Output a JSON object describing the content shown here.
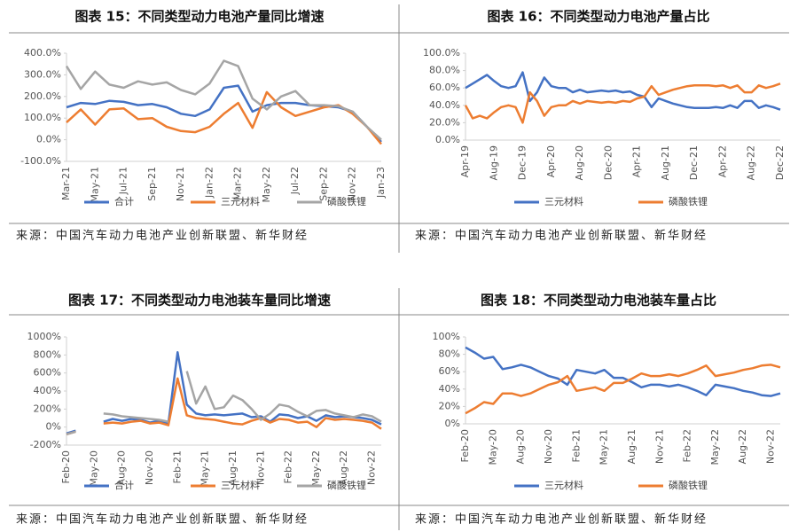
{
  "chart_data": [
    {
      "type": "line",
      "title": "图表 15：不同类型动力电池产量同比增速",
      "source": "来源：中国汽车动力电池产业创新联盟、新华财经",
      "categories": [
        "Mar-21",
        null,
        "May-21",
        null,
        "Jul-21",
        null,
        "Sep-21",
        null,
        "Nov-21",
        null,
        "Jan-22",
        null,
        "Mar-22",
        null,
        "May-22",
        null,
        "Jul-22",
        null,
        "Sep-22",
        null,
        "Nov-22",
        null,
        "Jan-23"
      ],
      "ylim": [
        -100,
        400
      ],
      "yticks": [
        {
          "value": -100,
          "label": "-100.0%"
        },
        {
          "value": 0,
          "label": "0.0%"
        },
        {
          "value": 100,
          "label": "100.0%"
        },
        {
          "value": 200,
          "label": "200.0%"
        },
        {
          "value": 300,
          "label": "300.0%"
        },
        {
          "value": 400,
          "label": "400.0%"
        }
      ],
      "grid": false,
      "legend": "bottom",
      "series": [
        {
          "name": "合计",
          "color": "#4472c4",
          "values": [
            150,
            170,
            165,
            180,
            175,
            160,
            165,
            150,
            120,
            110,
            140,
            240,
            250,
            130,
            160,
            170,
            170,
            160,
            155,
            150,
            130,
            60,
            -10
          ]
        },
        {
          "name": "三元材料",
          "color": "#ed7d31",
          "values": [
            80,
            140,
            70,
            140,
            145,
            95,
            100,
            60,
            40,
            35,
            60,
            120,
            170,
            55,
            220,
            150,
            110,
            130,
            150,
            160,
            120,
            60,
            -20
          ]
        },
        {
          "name": "磷酸铁锂",
          "color": "#a5a5a5",
          "values": [
            340,
            235,
            315,
            255,
            240,
            270,
            255,
            265,
            230,
            210,
            260,
            365,
            340,
            190,
            140,
            200,
            225,
            160,
            160,
            155,
            130,
            60,
            0
          ]
        }
      ]
    },
    {
      "type": "line",
      "title": "图表 16：不同类型动力电池产量占比",
      "source": "来源：中国汽车动力电池产业创新联盟、新华财经",
      "categories": [
        "Apr-19",
        null,
        null,
        null,
        "Aug-19",
        null,
        null,
        null,
        "Dec-19",
        null,
        null,
        null,
        "Apr-20",
        null,
        null,
        null,
        "Aug-20",
        null,
        null,
        null,
        "Dec-20",
        null,
        null,
        null,
        "Apr-21",
        null,
        null,
        null,
        "Aug-21",
        null,
        null,
        null,
        "Dec-21",
        null,
        null,
        null,
        "Apr-22",
        null,
        null,
        null,
        "Aug-22",
        null,
        null,
        null,
        "Dec-22"
      ],
      "ylim": [
        0,
        100
      ],
      "yticks": [
        {
          "value": 0,
          "label": "0.0%"
        },
        {
          "value": 20,
          "label": "20.0%"
        },
        {
          "value": 40,
          "label": "40.0%"
        },
        {
          "value": 60,
          "label": "60.0%"
        },
        {
          "value": 80,
          "label": "80.0%"
        },
        {
          "value": 100,
          "label": "100.0%"
        }
      ],
      "grid": false,
      "legend": "bottom",
      "series": [
        {
          "name": "三元材料",
          "color": "#4472c4",
          "values": [
            60,
            65,
            70,
            75,
            68,
            62,
            60,
            62,
            78,
            45,
            55,
            72,
            62,
            60,
            60,
            55,
            58,
            55,
            56,
            57,
            56,
            57,
            55,
            56,
            52,
            50,
            38,
            48,
            45,
            42,
            40,
            38,
            37,
            37,
            37,
            38,
            37,
            40,
            37,
            45,
            45,
            37,
            40,
            38,
            35
          ]
        },
        {
          "name": "磷酸铁锂",
          "color": "#ed7d31",
          "values": [
            40,
            25,
            28,
            25,
            32,
            38,
            40,
            38,
            20,
            55,
            45,
            28,
            38,
            40,
            40,
            45,
            42,
            45,
            44,
            43,
            44,
            43,
            45,
            44,
            48,
            50,
            62,
            52,
            55,
            58,
            60,
            62,
            63,
            63,
            63,
            62,
            63,
            60,
            63,
            55,
            55,
            63,
            60,
            62,
            65
          ]
        }
      ]
    },
    {
      "type": "line",
      "title": "图表 17：不同类型动力电池装车量同比增速",
      "source": "来源：中国汽车动力电池产业创新联盟、新华财经",
      "categories": [
        "Feb-20",
        null,
        null,
        "May-20",
        null,
        null,
        "Aug-20",
        null,
        null,
        "Nov-20",
        null,
        null,
        "Feb-21",
        null,
        null,
        "May-21",
        null,
        null,
        "Aug-21",
        null,
        null,
        "Nov-21",
        null,
        null,
        "Feb-22",
        null,
        null,
        "May-22",
        null,
        null,
        "Aug-22",
        null,
        null,
        "Nov-22",
        null
      ],
      "ylim": [
        -200,
        1000
      ],
      "yticks": [
        {
          "value": -200,
          "label": "-200%"
        },
        {
          "value": 0,
          "label": "0%"
        },
        {
          "value": 200,
          "label": "200%"
        },
        {
          "value": 400,
          "label": "400%"
        },
        {
          "value": 600,
          "label": "600%"
        },
        {
          "value": 800,
          "label": "800%"
        },
        {
          "value": 1000,
          "label": "1000%"
        }
      ],
      "grid": false,
      "legend": "bottom",
      "series": [
        {
          "name": "合计",
          "color": "#4472c4",
          "values": [
            -70,
            -40,
            null,
            null,
            60,
            90,
            70,
            90,
            80,
            50,
            70,
            40,
            830,
            250,
            150,
            130,
            140,
            130,
            140,
            150,
            110,
            120,
            60,
            140,
            130,
            100,
            120,
            70,
            130,
            110,
            120,
            110,
            100,
            80,
            30
          ]
        },
        {
          "name": "三元材料",
          "color": "#ed7d31",
          "values": [
            -80,
            -50,
            null,
            null,
            40,
            50,
            40,
            60,
            70,
            40,
            50,
            20,
            540,
            130,
            100,
            90,
            80,
            60,
            40,
            30,
            70,
            100,
            50,
            90,
            80,
            50,
            60,
            0,
            100,
            80,
            90,
            80,
            70,
            50,
            -20
          ]
        },
        {
          "name": "磷酸铁锂",
          "color": "#a5a5a5",
          "values": [
            -80,
            -50,
            null,
            null,
            150,
            140,
            120,
            110,
            100,
            90,
            80,
            60,
            null,
            620,
            260,
            450,
            200,
            220,
            350,
            300,
            200,
            80,
            150,
            250,
            230,
            170,
            120,
            180,
            190,
            150,
            130,
            110,
            140,
            120,
            60
          ]
        }
      ]
    },
    {
      "type": "line",
      "title": "图表 18：不同类型动力电池装车量占比",
      "source": "来源：中国汽车动力电池产业创新联盟、新华财经",
      "categories": [
        "Feb-20",
        null,
        null,
        "May-20",
        null,
        null,
        "Aug-20",
        null,
        null,
        "Nov-20",
        null,
        null,
        "Feb-21",
        null,
        null,
        "May-21",
        null,
        null,
        "Aug-21",
        null,
        null,
        "Nov-21",
        null,
        null,
        "Feb-22",
        null,
        null,
        "May-22",
        null,
        null,
        "Aug-22",
        null,
        null,
        "Nov-22",
        null
      ],
      "ylim": [
        0,
        100
      ],
      "yticks": [
        {
          "value": 0,
          "label": "0%"
        },
        {
          "value": 20,
          "label": "20%"
        },
        {
          "value": 40,
          "label": "40%"
        },
        {
          "value": 60,
          "label": "60%"
        },
        {
          "value": 80,
          "label": "80%"
        },
        {
          "value": 100,
          "label": "100%"
        }
      ],
      "grid": false,
      "legend": "bottom",
      "series": [
        {
          "name": "三元材料",
          "color": "#4472c4",
          "values": [
            88,
            82,
            75,
            77,
            63,
            65,
            68,
            65,
            60,
            55,
            52,
            45,
            62,
            60,
            58,
            62,
            53,
            53,
            48,
            42,
            45,
            45,
            43,
            45,
            42,
            38,
            33,
            45,
            43,
            41,
            38,
            36,
            33,
            32,
            35
          ]
        },
        {
          "name": "磷酸铁锂",
          "color": "#ed7d31",
          "values": [
            12,
            18,
            25,
            23,
            35,
            35,
            32,
            35,
            40,
            45,
            48,
            55,
            38,
            40,
            42,
            38,
            47,
            47,
            52,
            58,
            55,
            55,
            57,
            55,
            58,
            62,
            67,
            55,
            57,
            59,
            62,
            64,
            67,
            68,
            65
          ]
        }
      ]
    }
  ]
}
